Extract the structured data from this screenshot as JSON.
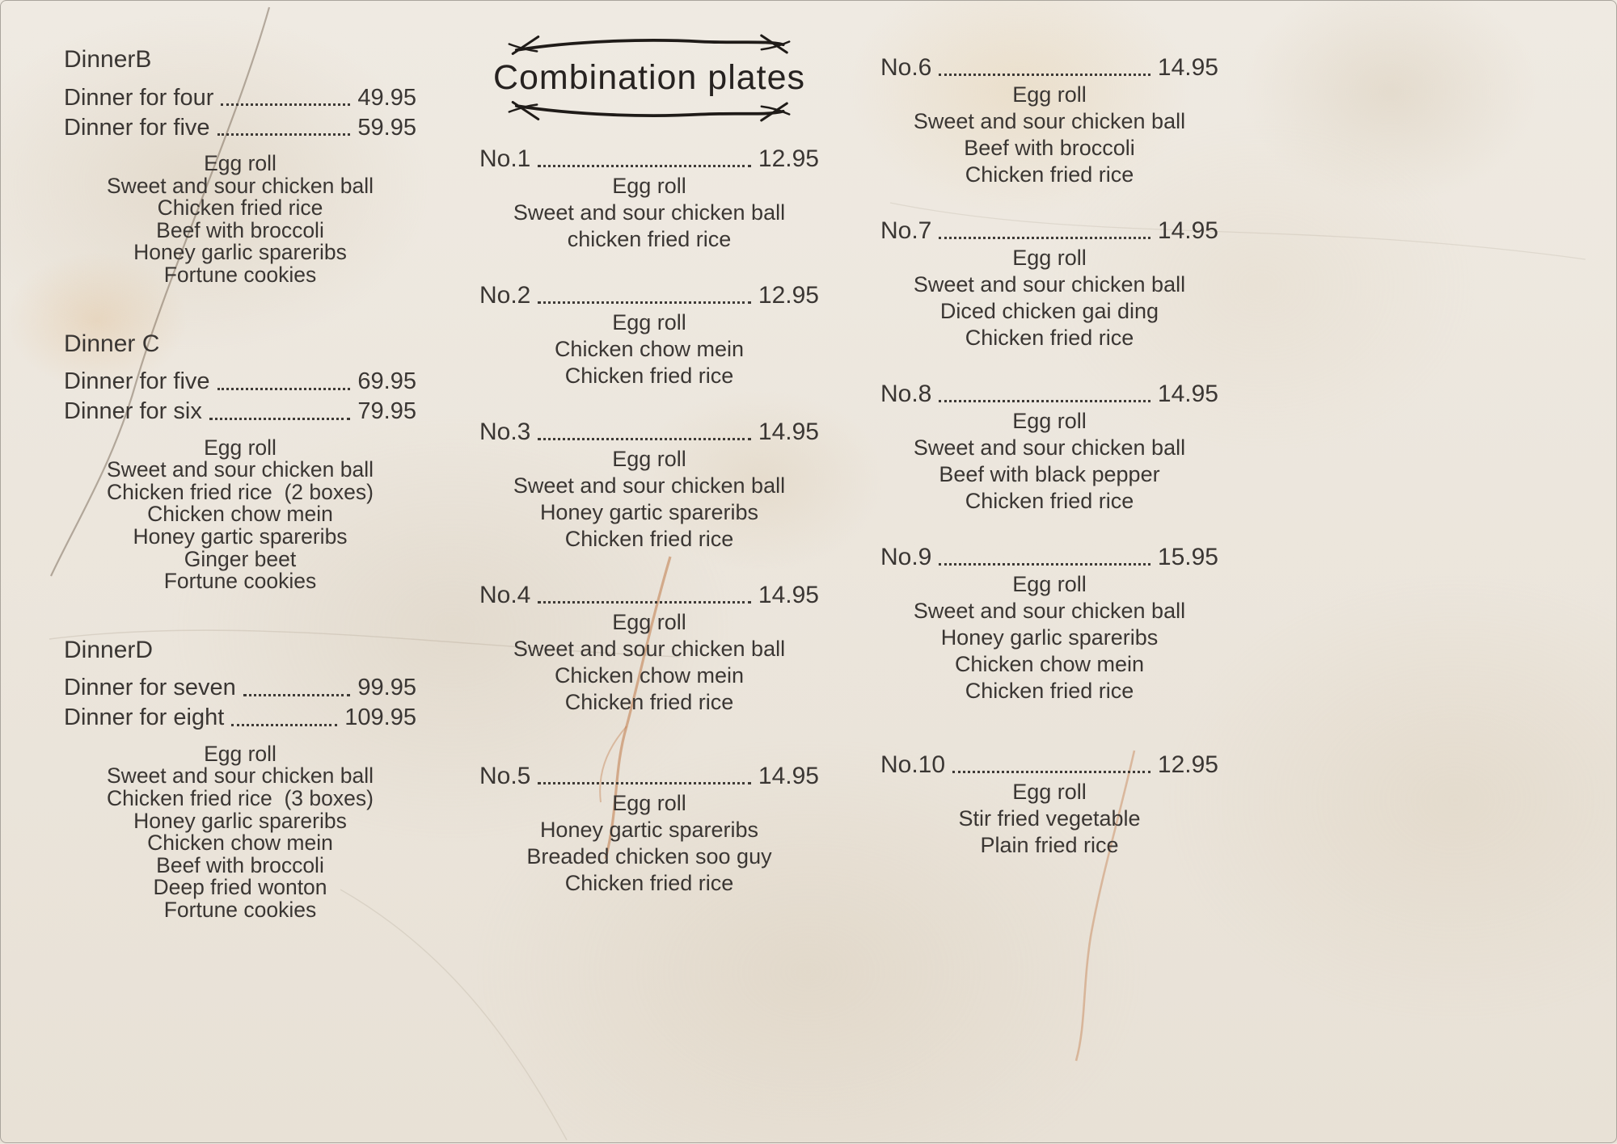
{
  "title": "Combination plates",
  "colors": {
    "text": "#3a3633",
    "title": "#262220",
    "flourish": "#1f1b18",
    "marble_base": "#ece6dd",
    "rust_vein": "#c07a48"
  },
  "icons": {
    "flourish_top": "hand-drawn-arrow-line",
    "flourish_bottom": "hand-drawn-arrow-line"
  },
  "dinner_sections": [
    {
      "heading": "DinnerB",
      "options": [
        {
          "label": "Dinner for four",
          "price": "49.95"
        },
        {
          "label": "Dinner for five",
          "price": "59.95"
        }
      ],
      "items": [
        "Egg roll",
        "Sweet and sour chicken ball",
        "Chicken fried rice",
        "Beef with broccoli",
        "Honey garlic spareribs",
        "Fortune cookies"
      ]
    },
    {
      "heading": "Dinner C",
      "options": [
        {
          "label": "Dinner for five",
          "price": "69.95"
        },
        {
          "label": "Dinner for six",
          "price": "79.95"
        }
      ],
      "items": [
        "Egg roll",
        "Sweet and sour chicken ball",
        "Chicken fried rice  (2 boxes)",
        "Chicken chow mein",
        "Honey gartic spareribs",
        "Ginger beet",
        "Fortune cookies"
      ]
    },
    {
      "heading": "DinnerD",
      "options": [
        {
          "label": "Dinner for seven",
          "price": "99.95"
        },
        {
          "label": "Dinner for eight",
          "price": "109.95"
        }
      ],
      "items": [
        "Egg roll",
        "Sweet and sour chicken ball",
        "Chicken fried rice  (3 boxes)",
        "Honey garlic spareribs",
        "Chicken chow mein",
        "Beef with broccoli",
        "Deep fried wonton",
        "Fortune cookies"
      ]
    }
  ],
  "combination_plates": [
    {
      "number": "No.1",
      "price": "12.95",
      "items": [
        "Egg roll",
        "Sweet and sour chicken ball",
        "chicken fried rice"
      ]
    },
    {
      "number": "No.2",
      "price": "12.95",
      "items": [
        "Egg roll",
        "Chicken chow mein",
        "Chicken fried rice"
      ]
    },
    {
      "number": "No.3",
      "price": "14.95",
      "items": [
        "Egg roll",
        "Sweet and sour chicken ball",
        "Honey gartic spareribs",
        "Chicken fried rice"
      ]
    },
    {
      "number": "No.4",
      "price": "14.95",
      "items": [
        "Egg roll",
        "Sweet and sour chicken ball",
        "Chicken chow mein",
        "Chicken fried rice"
      ]
    },
    {
      "number": "No.5",
      "price": "14.95",
      "items": [
        "Egg roll",
        "Honey gartic spareribs",
        "Breaded chicken soo guy",
        "Chicken fried rice"
      ]
    },
    {
      "number": "No.6",
      "price": "14.95",
      "items": [
        "Egg roll",
        "Sweet and sour chicken ball",
        "Beef with broccoli",
        "Chicken fried rice"
      ]
    },
    {
      "number": "No.7",
      "price": "14.95",
      "items": [
        "Egg roll",
        "Sweet and sour chicken ball",
        "Diced chicken gai ding",
        "Chicken fried rice"
      ]
    },
    {
      "number": "No.8",
      "price": "14.95",
      "items": [
        "Egg roll",
        "Sweet and sour chicken ball",
        "Beef with black pepper",
        "Chicken fried rice"
      ]
    },
    {
      "number": "No.9",
      "price": "15.95",
      "items": [
        "Egg roll",
        "Sweet and sour chicken ball",
        "Honey garlic spareribs",
        "Chicken chow mein",
        "Chicken fried rice"
      ]
    },
    {
      "number": "No.10",
      "price": "12.95",
      "items": [
        "Egg roll",
        "Stir fried vegetable",
        "Plain fried rice"
      ]
    }
  ]
}
